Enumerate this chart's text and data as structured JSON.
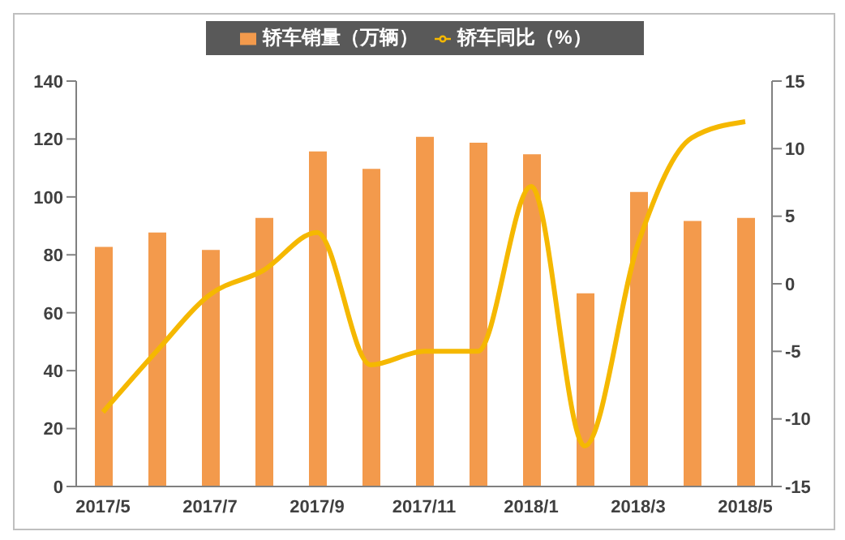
{
  "chart_data": {
    "type": "bar",
    "categories": [
      "2017/5",
      null,
      "2017/7",
      null,
      "2017/9",
      null,
      "2017/11",
      null,
      "2018/1",
      null,
      "2018/3",
      null,
      "2018/5"
    ],
    "series": [
      {
        "name": "轿车销量（万辆）",
        "color": "#f39a4c",
        "values": [
          83,
          88,
          82,
          93,
          116,
          110,
          121,
          119,
          115,
          67,
          102,
          92,
          93
        ]
      },
      {
        "name": "轿车同比（%）",
        "type": "line",
        "axis": "y2",
        "color": "#f5b800",
        "values": [
          -9.5,
          -5,
          -0.8,
          1,
          3.8,
          -6,
          -5,
          -5,
          7.2,
          -12,
          3,
          10.8,
          12
        ]
      }
    ],
    "ylim": [
      0,
      140
    ],
    "yticks": [
      0,
      20,
      40,
      60,
      80,
      100,
      120,
      140
    ],
    "y2lim": [
      -15,
      15
    ],
    "y2ticks": [
      -15,
      -10,
      -5,
      0,
      5,
      10,
      15
    ],
    "grid": false,
    "legend": "top",
    "marker": "none"
  }
}
